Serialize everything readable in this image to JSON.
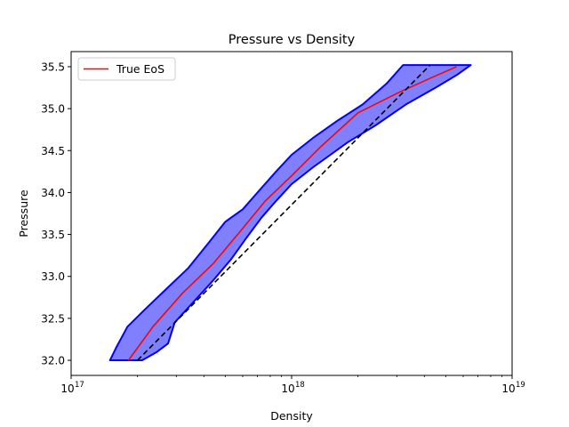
{
  "chart_data": {
    "type": "line",
    "title": "Pressure vs Density",
    "xlabel": "Density",
    "ylabel": "Pressure",
    "xscale": "log",
    "xlim": [
      1e+17,
      1e+19
    ],
    "ylim": [
      31.82,
      35.68
    ],
    "x_ticks": [
      {
        "value": 1e+17,
        "label": "10",
        "exp": "17"
      },
      {
        "value": 1e+18,
        "label": "10",
        "exp": "18"
      },
      {
        "value": 1e+19,
        "label": "10",
        "exp": "19"
      }
    ],
    "y_ticks": [
      32.0,
      32.5,
      33.0,
      33.5,
      34.0,
      34.5,
      35.0,
      35.5
    ],
    "y_tick_labels": [
      "32.0",
      "32.5",
      "33.0",
      "33.5",
      "34.0",
      "34.5",
      "35.0",
      "35.5"
    ],
    "grid": false,
    "legend": {
      "position": "top-left",
      "entries": [
        {
          "name": "True EoS",
          "color": "#ff0000"
        }
      ]
    },
    "colors": {
      "band_fill": "#8080ff",
      "band_edge": "#0000ff",
      "true_eos": "#ff0000",
      "fit": "#000000"
    },
    "series": [
      {
        "name": "True EoS",
        "style": "solid",
        "color": "#ff0000",
        "points": [
          [
            1.82e+17,
            32.0
          ],
          [
            2.35e+17,
            32.4
          ],
          [
            3.2e+17,
            32.8
          ],
          [
            4.4e+17,
            33.15
          ],
          [
            5.9e+17,
            33.55
          ],
          [
            7.6e+17,
            33.9
          ],
          [
            1e+18,
            34.2
          ],
          [
            1.36e+18,
            34.55
          ],
          [
            2e+18,
            34.95
          ],
          [
            3.1e+18,
            35.2
          ],
          [
            4.4e+18,
            35.38
          ],
          [
            5.6e+18,
            35.5
          ]
        ]
      },
      {
        "name": "",
        "style": "dashed",
        "color": "#000000",
        "points": [
          [
            2e+17,
            32.0
          ],
          [
            4.25e+18,
            35.52
          ]
        ]
      }
    ],
    "band": {
      "upper": [
        [
          1.5e+17,
          32.0
        ],
        [
          1.6e+17,
          32.15
        ],
        [
          1.8e+17,
          32.4
        ],
        [
          2.15e+17,
          32.6
        ],
        [
          2.7e+17,
          32.85
        ],
        [
          3.4e+17,
          33.1
        ],
        [
          4.2e+17,
          33.4
        ],
        [
          5e+17,
          33.65
        ],
        [
          6e+17,
          33.8
        ],
        [
          7e+17,
          34.0
        ],
        [
          8.5e+17,
          34.25
        ],
        [
          1e+18,
          34.45
        ],
        [
          1.25e+18,
          34.65
        ],
        [
          1.6e+18,
          34.85
        ],
        [
          2.1e+18,
          35.05
        ],
        [
          2.7e+18,
          35.3
        ],
        [
          3.2e+18,
          35.52
        ]
      ],
      "lower": [
        [
          6.5e+18,
          35.52
        ],
        [
          5.6e+18,
          35.4
        ],
        [
          4.5e+18,
          35.25
        ],
        [
          3.3e+18,
          35.05
        ],
        [
          2.4e+18,
          34.8
        ],
        [
          1.8e+18,
          34.6
        ],
        [
          1.5e+18,
          34.45
        ],
        [
          1.25e+18,
          34.3
        ],
        [
          1e+18,
          34.1
        ],
        [
          8.5e+17,
          33.9
        ],
        [
          7.3e+17,
          33.7
        ],
        [
          6.2e+17,
          33.45
        ],
        [
          5.3e+17,
          33.2
        ],
        [
          4.4e+17,
          32.95
        ],
        [
          3.6e+17,
          32.7
        ],
        [
          2.95e+17,
          32.45
        ],
        [
          2.75e+17,
          32.2
        ],
        [
          2.45e+17,
          32.1
        ],
        [
          2.1e+17,
          32.0
        ]
      ]
    }
  }
}
